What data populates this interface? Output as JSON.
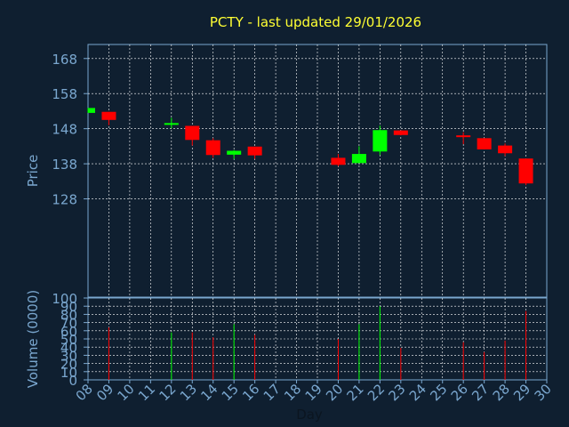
{
  "chart_data": {
    "type": "candlestick",
    "title": "PCTY - last updated 29/01/2026",
    "xlabel": "Day",
    "price_panel": {
      "ylabel": "Price",
      "ylim": [
        100,
        172
      ],
      "yticks": [
        168,
        158,
        148,
        138,
        128
      ],
      "ytick_labels": [
        "168",
        "158",
        "148",
        "138",
        "128"
      ],
      "grid": true
    },
    "volume_panel": {
      "ylabel": "Volume (0000)",
      "ylim": [
        0,
        100
      ],
      "yticks": [
        0,
        10,
        20,
        30,
        40,
        50,
        60,
        70,
        80,
        90,
        100
      ],
      "ytick_labels": [
        "0",
        "10",
        "20",
        "30",
        "40",
        "50",
        "60",
        "70",
        "80",
        "90",
        "100"
      ],
      "grid": true
    },
    "x_ticks": [
      "08",
      "09",
      "10",
      "11",
      "12",
      "13",
      "14",
      "15",
      "16",
      "17",
      "18",
      "19",
      "20",
      "21",
      "22",
      "23",
      "24",
      "25",
      "26",
      "27",
      "28",
      "29",
      "30"
    ],
    "colors": {
      "up": "#00ff00",
      "down": "#ff0000",
      "grid": "#ffffff",
      "axis": "#7aa7cf",
      "title": "#ffff33",
      "background": "#0f1f30"
    },
    "candles": [
      {
        "day": "08",
        "open": 152.5,
        "high": 153.9,
        "low": 152.5,
        "close": 153.9,
        "volume": 0
      },
      {
        "day": "09",
        "open": 152.8,
        "high": 152.8,
        "low": 149.0,
        "close": 150.5,
        "volume": 64
      },
      {
        "day": "12",
        "open": 149.2,
        "high": 151.1,
        "low": 148.1,
        "close": 149.6,
        "volume": 58
      },
      {
        "day": "13",
        "open": 148.8,
        "high": 148.8,
        "low": 143.2,
        "close": 144.8,
        "volume": 58
      },
      {
        "day": "14",
        "open": 144.7,
        "high": 145.3,
        "low": 139.7,
        "close": 140.5,
        "volume": 52
      },
      {
        "day": "15",
        "open": 140.6,
        "high": 141.9,
        "low": 139.4,
        "close": 141.7,
        "volume": 68
      },
      {
        "day": "16",
        "open": 142.9,
        "high": 142.9,
        "low": 139.4,
        "close": 140.4,
        "volume": 55
      },
      {
        "day": "20",
        "open": 139.7,
        "high": 140.8,
        "low": 137.3,
        "close": 137.7,
        "volume": 50
      },
      {
        "day": "21",
        "open": 138.2,
        "high": 143.0,
        "low": 138.2,
        "close": 140.8,
        "volume": 68
      },
      {
        "day": "22",
        "open": 141.5,
        "high": 148.9,
        "low": 140.5,
        "close": 147.6,
        "volume": 90
      },
      {
        "day": "23",
        "open": 147.5,
        "high": 147.5,
        "low": 146.1,
        "close": 146.2,
        "volume": 39
      },
      {
        "day": "26",
        "open": 146.1,
        "high": 147.0,
        "low": 143.6,
        "close": 145.7,
        "volume": 46
      },
      {
        "day": "27",
        "open": 145.3,
        "high": 145.3,
        "low": 142.1,
        "close": 142.1,
        "volume": 34
      },
      {
        "day": "28",
        "open": 143.2,
        "high": 143.8,
        "low": 140.2,
        "close": 141.0,
        "volume": 48
      },
      {
        "day": "29",
        "open": 139.5,
        "high": 139.5,
        "low": 131.9,
        "close": 132.4,
        "volume": 84
      }
    ]
  }
}
